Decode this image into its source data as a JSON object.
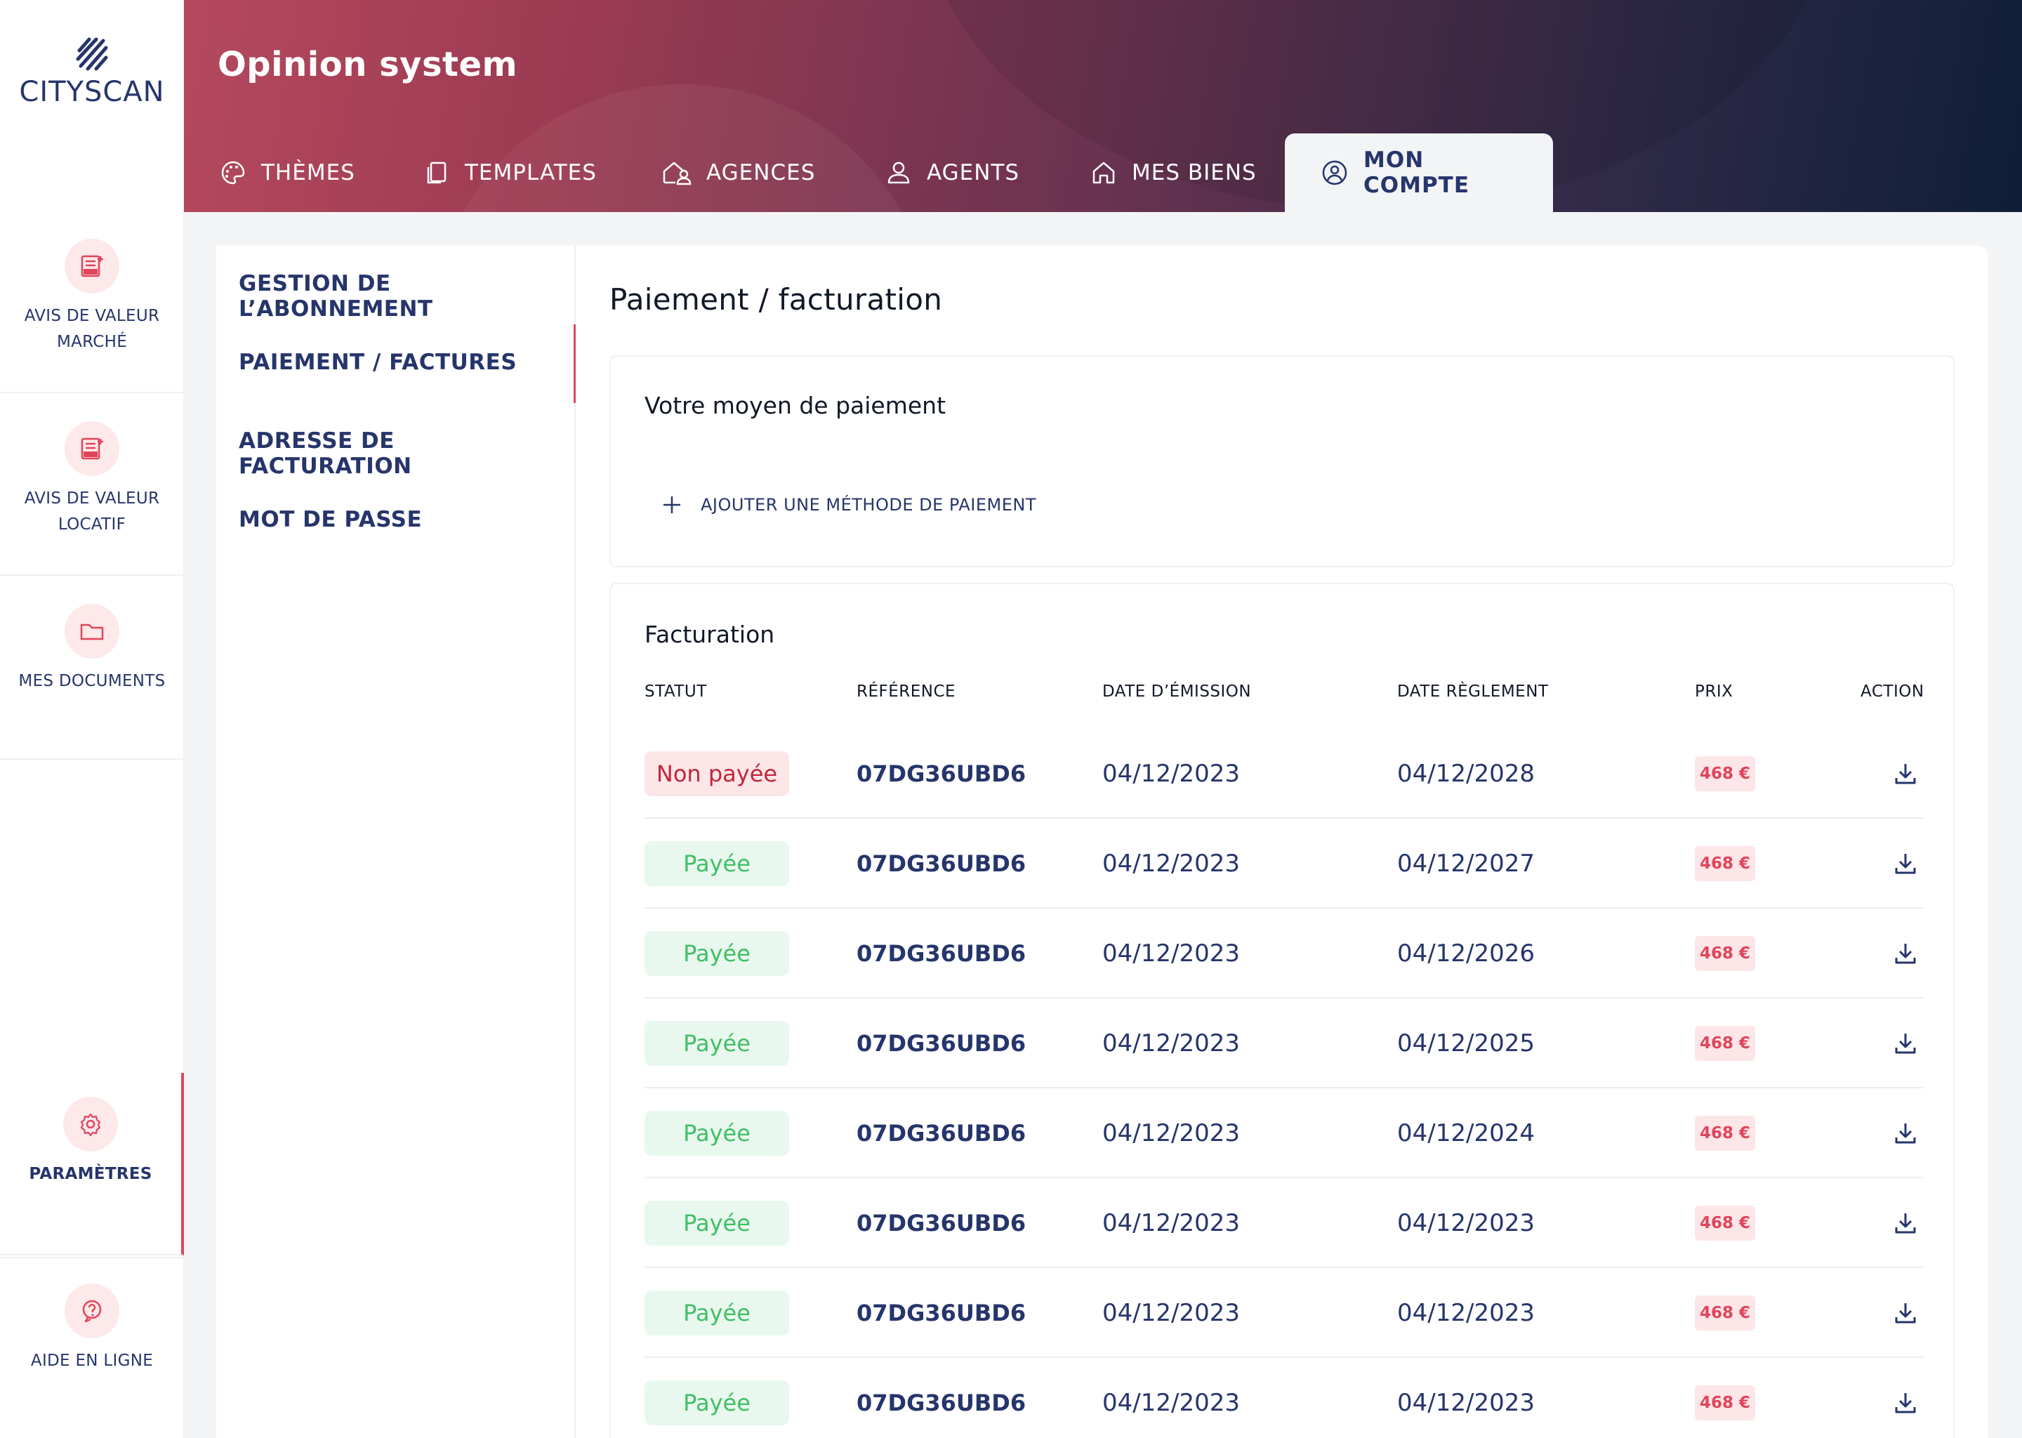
{
  "app": {
    "logo_text": "CITYSCAN",
    "title": "Opinion system"
  },
  "sidebar": {
    "items": [
      {
        "label": "AVIS DE VALEUR MARCHÉ",
        "icon": "avm-document-icon"
      },
      {
        "label": "AVIS DE VALEUR LOCATIF",
        "icon": "avl-document-icon"
      },
      {
        "label": "MES DOCUMENTS",
        "icon": "folder-icon"
      },
      {
        "label": "PARAMÈTRES",
        "icon": "gear-icon"
      },
      {
        "label": "AIDE EN LIGNE",
        "icon": "help-icon"
      }
    ]
  },
  "tabs": [
    {
      "label": "THÈMES",
      "icon": "palette-icon"
    },
    {
      "label": "TEMPLATES",
      "icon": "copy-icon"
    },
    {
      "label": "AGENCES",
      "icon": "agency-icon"
    },
    {
      "label": "AGENTS",
      "icon": "user-icon"
    },
    {
      "label": "MES BIENS",
      "icon": "home-icon"
    },
    {
      "label": "MON COMPTE",
      "icon": "account-circle-icon"
    }
  ],
  "submenu": {
    "items": [
      {
        "label": "GESTION DE L’ABONNEMENT"
      },
      {
        "label": "PAIEMENT / FACTURES"
      },
      {
        "label": "ADRESSE DE FACTURATION"
      },
      {
        "label": "MOT DE PASSE"
      }
    ]
  },
  "main": {
    "title": "Paiement / facturation",
    "payment_card": {
      "title": "Votre moyen de paiement",
      "add_label": "AJOUTER UNE MÉTHODE DE PAIEMENT"
    },
    "billing": {
      "title": "Facturation",
      "headers": {
        "status": "STATUT",
        "reference": "RÉFÉRENCE",
        "issue_date": "DATE D’ÉMISSION",
        "payment_date": "DATE RÈGLEMENT",
        "price": "PRIX",
        "action": "ACTION"
      },
      "rows": [
        {
          "status": "Non payée",
          "paid": false,
          "reference": "07DG36UBD6",
          "issue_date": "04/12/2023",
          "payment_date": "04/12/2028",
          "price": "468 €"
        },
        {
          "status": "Payée",
          "paid": true,
          "reference": "07DG36UBD6",
          "issue_date": "04/12/2023",
          "payment_date": "04/12/2027",
          "price": "468 €"
        },
        {
          "status": "Payée",
          "paid": true,
          "reference": "07DG36UBD6",
          "issue_date": "04/12/2023",
          "payment_date": "04/12/2026",
          "price": "468 €"
        },
        {
          "status": "Payée",
          "paid": true,
          "reference": "07DG36UBD6",
          "issue_date": "04/12/2023",
          "payment_date": "04/12/2025",
          "price": "468 €"
        },
        {
          "status": "Payée",
          "paid": true,
          "reference": "07DG36UBD6",
          "issue_date": "04/12/2023",
          "payment_date": "04/12/2024",
          "price": "468 €"
        },
        {
          "status": "Payée",
          "paid": true,
          "reference": "07DG36UBD6",
          "issue_date": "04/12/2023",
          "payment_date": "04/12/2023",
          "price": "468 €"
        },
        {
          "status": "Payée",
          "paid": true,
          "reference": "07DG36UBD6",
          "issue_date": "04/12/2023",
          "payment_date": "04/12/2023",
          "price": "468 €"
        },
        {
          "status": "Payée",
          "paid": true,
          "reference": "07DG36UBD6",
          "issue_date": "04/12/2023",
          "payment_date": "04/12/2023",
          "price": "468 €"
        }
      ]
    }
  },
  "colors": {
    "accent": "#e0455a",
    "navy": "#26356b",
    "paid": "#3fbf66",
    "unpaid": "#c2263a"
  }
}
